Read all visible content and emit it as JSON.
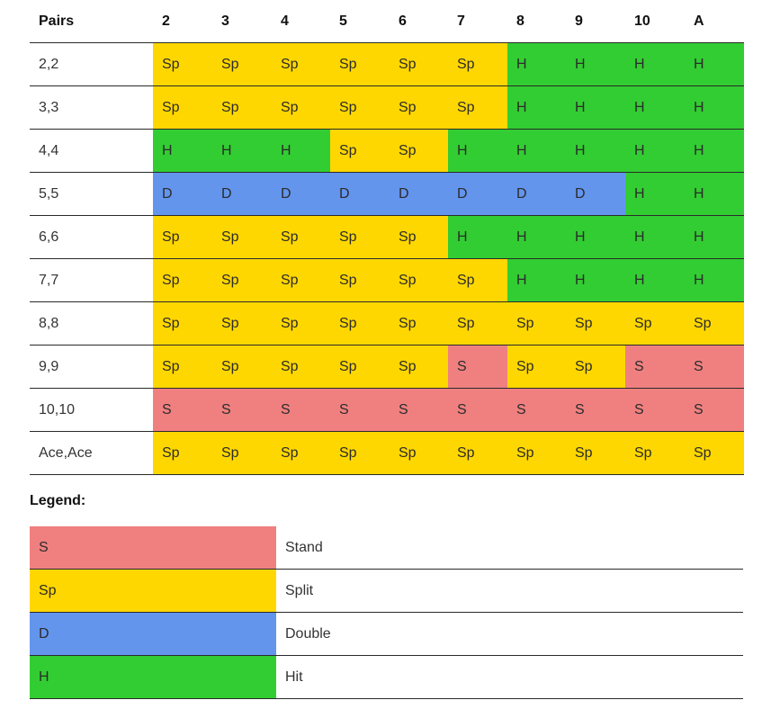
{
  "table": {
    "header": [
      "Pairs",
      "2",
      "3",
      "4",
      "5",
      "6",
      "7",
      "8",
      "9",
      "10",
      "A"
    ],
    "rows": [
      {
        "label": "2,2",
        "cells": [
          "Sp",
          "Sp",
          "Sp",
          "Sp",
          "Sp",
          "Sp",
          "H",
          "H",
          "H",
          "H"
        ]
      },
      {
        "label": "3,3",
        "cells": [
          "Sp",
          "Sp",
          "Sp",
          "Sp",
          "Sp",
          "Sp",
          "H",
          "H",
          "H",
          "H"
        ]
      },
      {
        "label": "4,4",
        "cells": [
          "H",
          "H",
          "H",
          "Sp",
          "Sp",
          "H",
          "H",
          "H",
          "H",
          "H"
        ]
      },
      {
        "label": "5,5",
        "cells": [
          "D",
          "D",
          "D",
          "D",
          "D",
          "D",
          "D",
          "D",
          "H",
          "H"
        ]
      },
      {
        "label": "6,6",
        "cells": [
          "Sp",
          "Sp",
          "Sp",
          "Sp",
          "Sp",
          "H",
          "H",
          "H",
          "H",
          "H"
        ]
      },
      {
        "label": "7,7",
        "cells": [
          "Sp",
          "Sp",
          "Sp",
          "Sp",
          "Sp",
          "Sp",
          "H",
          "H",
          "H",
          "H"
        ]
      },
      {
        "label": "8,8",
        "cells": [
          "Sp",
          "Sp",
          "Sp",
          "Sp",
          "Sp",
          "Sp",
          "Sp",
          "Sp",
          "Sp",
          "Sp"
        ]
      },
      {
        "label": "9,9",
        "cells": [
          "Sp",
          "Sp",
          "Sp",
          "Sp",
          "Sp",
          "S",
          "Sp",
          "Sp",
          "S",
          "S"
        ]
      },
      {
        "label": "10,10",
        "cells": [
          "S",
          "S",
          "S",
          "S",
          "S",
          "S",
          "S",
          "S",
          "S",
          "S"
        ]
      },
      {
        "label": "Ace,Ace",
        "cells": [
          "Sp",
          "Sp",
          "Sp",
          "Sp",
          "Sp",
          "Sp",
          "Sp",
          "Sp",
          "Sp",
          "Sp"
        ]
      }
    ]
  },
  "legend": {
    "title": "Legend:",
    "items": [
      {
        "code": "S",
        "label": "Stand"
      },
      {
        "code": "Sp",
        "label": "Split"
      },
      {
        "code": "D",
        "label": "Double"
      },
      {
        "code": "H",
        "label": "Hit"
      }
    ]
  },
  "colors": {
    "S": "#f08080",
    "Sp": "#ffd700",
    "D": "#6495ed",
    "H": "#32cd32"
  }
}
